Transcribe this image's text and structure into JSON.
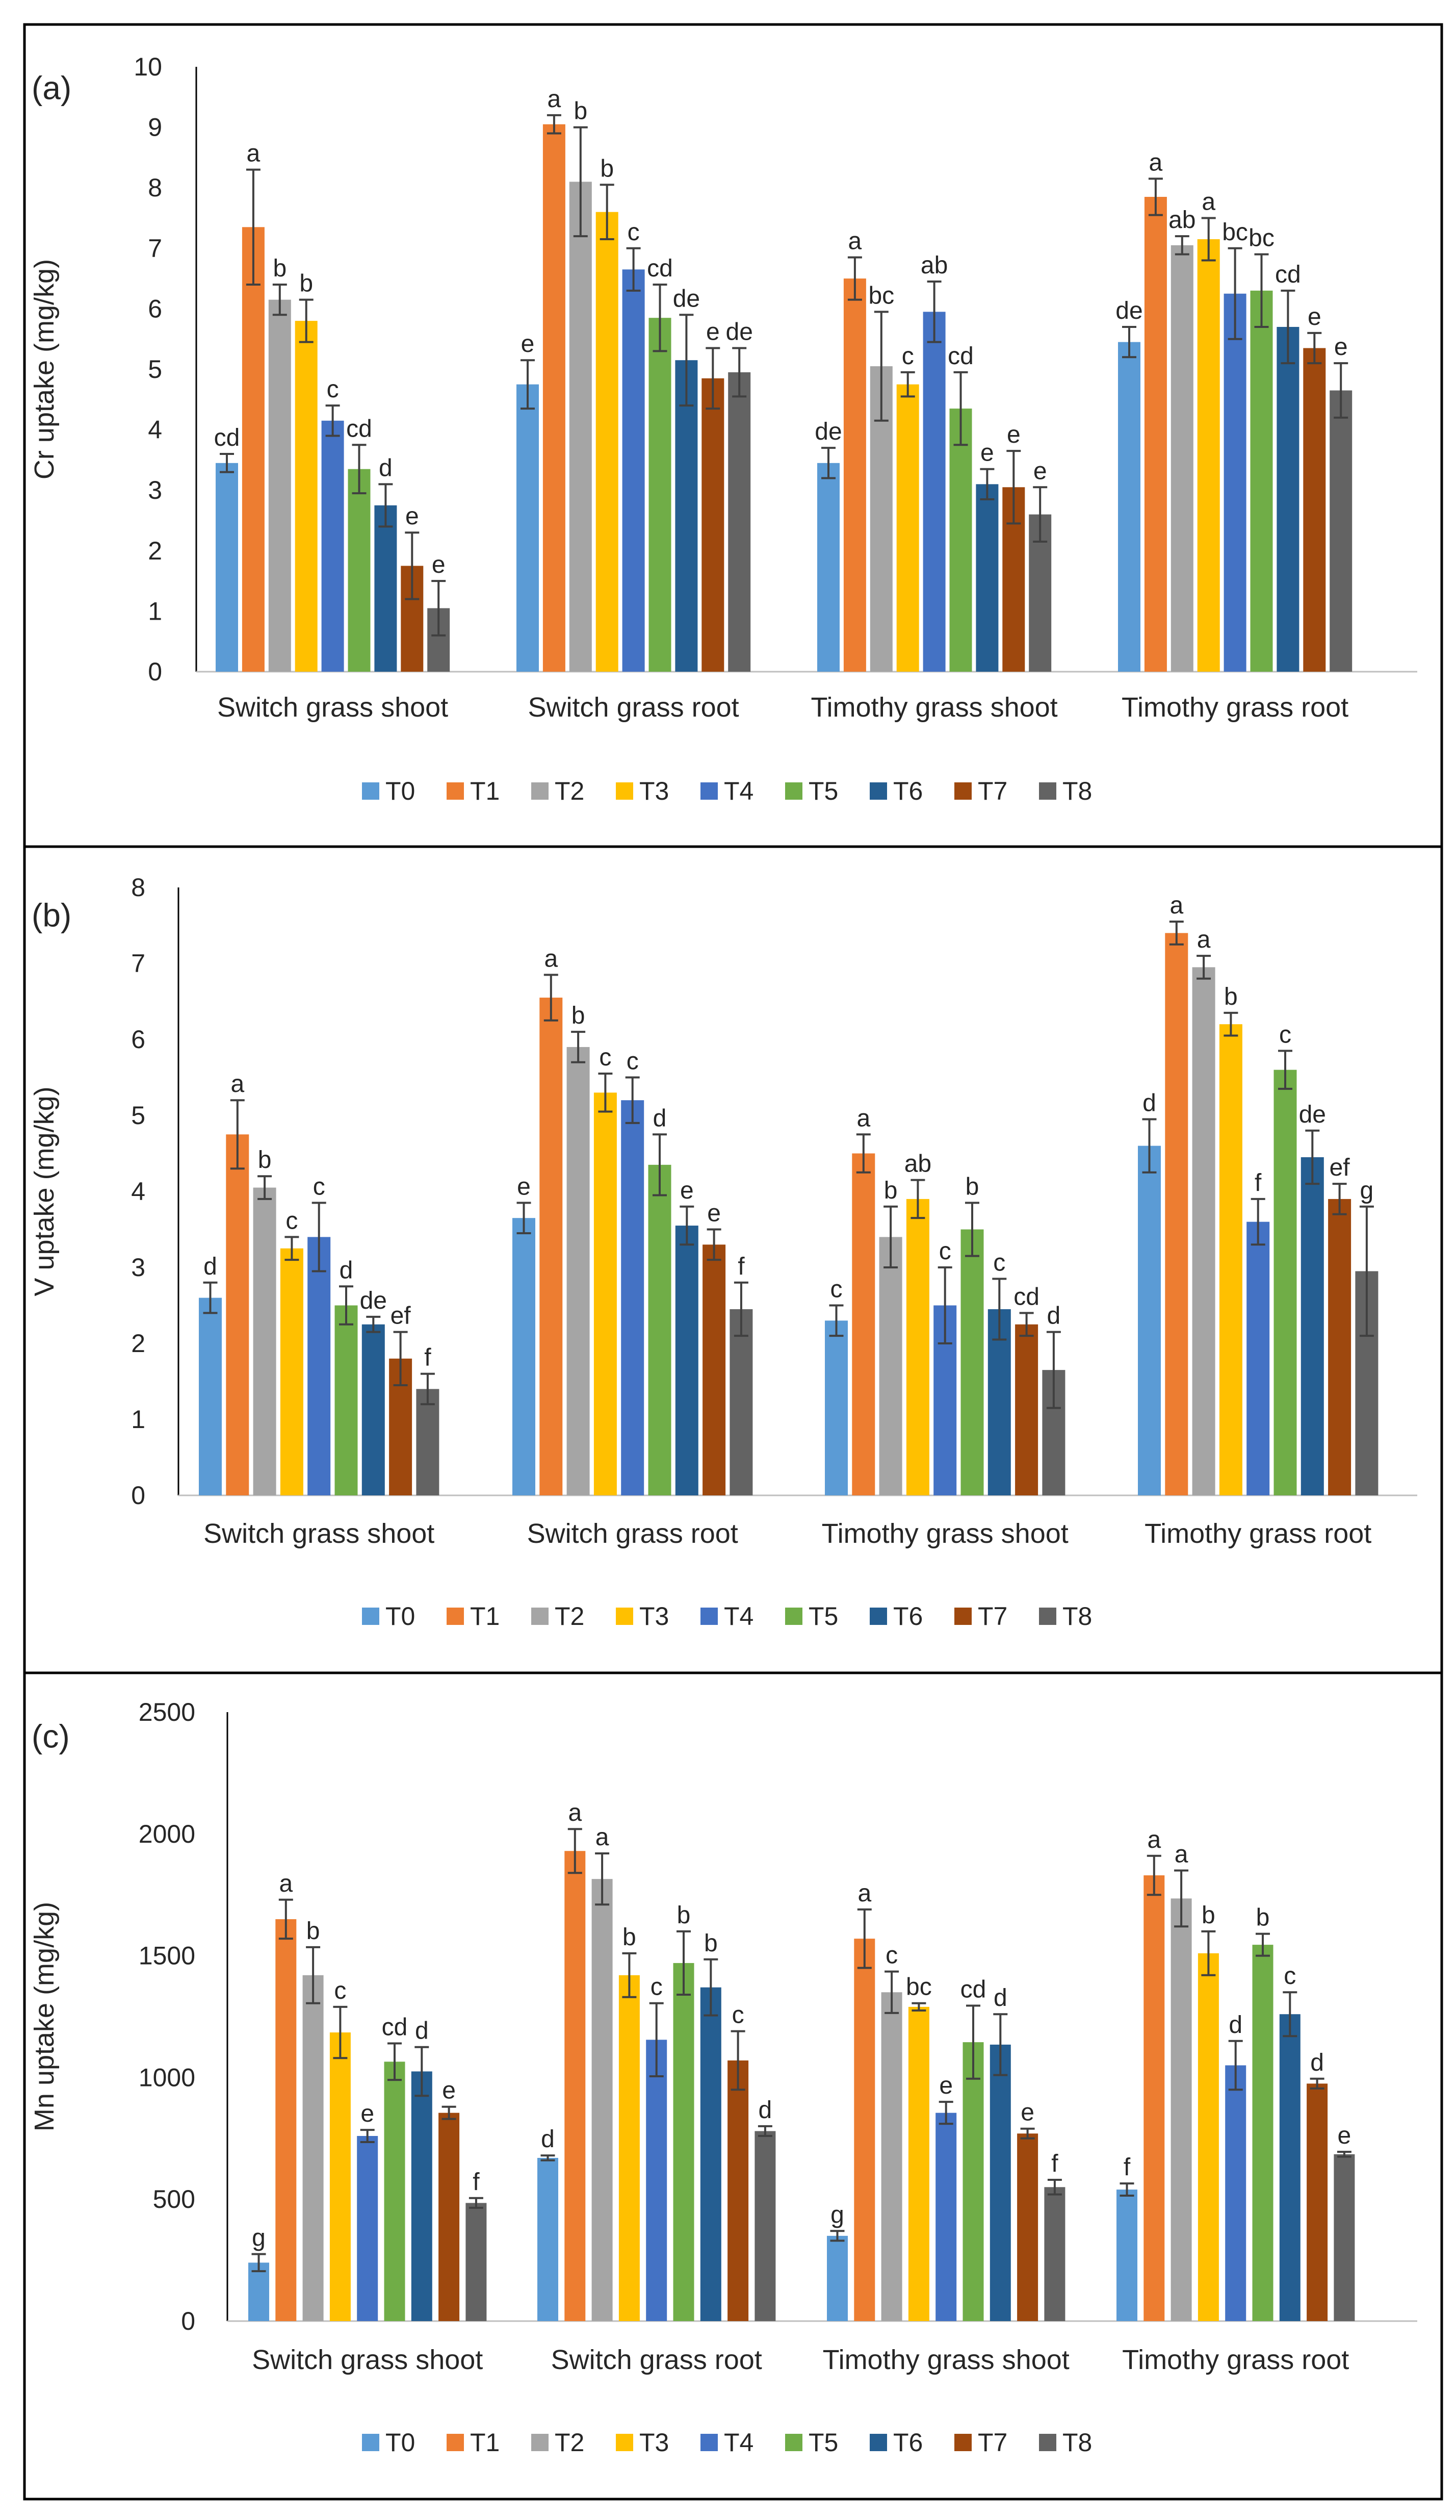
{
  "legend_labels": [
    "T0",
    "T1",
    "T2",
    "T3",
    "T4",
    "T5",
    "T6",
    "T7",
    "T8"
  ],
  "series_colors": [
    "#5B9BD5",
    "#ED7D31",
    "#A5A5A5",
    "#FFC000",
    "#4472C4",
    "#70AD47",
    "#255E91",
    "#9E480E",
    "#636363"
  ],
  "chart_data": [
    {
      "type": "bar",
      "panel_label": "(a)",
      "ylabel": "Cr uptake (mg/kg)",
      "ylim": [
        0,
        10
      ],
      "yticks": [
        0,
        1,
        2,
        3,
        4,
        5,
        6,
        7,
        8,
        9,
        10
      ],
      "categories": [
        "Switch grass shoot",
        "Switch grass root",
        "Timothy grass shoot",
        "Timothy grass root"
      ],
      "series": [
        {
          "name": "T0",
          "values": [
            3.45,
            4.75,
            3.45,
            5.45
          ],
          "errors": [
            0.15,
            0.4,
            0.25,
            0.25
          ],
          "letters": [
            "cd",
            "e",
            "de",
            "de"
          ]
        },
        {
          "name": "T1",
          "values": [
            7.35,
            9.05,
            6.5,
            7.85
          ],
          "errors": [
            0.95,
            0.15,
            0.35,
            0.3
          ],
          "letters": [
            "a",
            "a",
            "a",
            "a"
          ]
        },
        {
          "name": "T2",
          "values": [
            6.15,
            8.1,
            5.05,
            7.05
          ],
          "errors": [
            0.25,
            0.9,
            0.9,
            0.15
          ],
          "letters": [
            "b",
            "b",
            "bc",
            "ab"
          ]
        },
        {
          "name": "T3",
          "values": [
            5.8,
            7.6,
            4.75,
            7.15
          ],
          "errors": [
            0.35,
            0.45,
            0.2,
            0.35
          ],
          "letters": [
            "b",
            "b",
            "c",
            "a"
          ]
        },
        {
          "name": "T4",
          "values": [
            4.15,
            6.65,
            5.95,
            6.25
          ],
          "errors": [
            0.25,
            0.35,
            0.5,
            0.75
          ],
          "letters": [
            "c",
            "c",
            "ab",
            "bc"
          ]
        },
        {
          "name": "T5",
          "values": [
            3.35,
            5.85,
            4.35,
            6.3
          ],
          "errors": [
            0.4,
            0.55,
            0.6,
            0.6
          ],
          "letters": [
            "cd",
            "cd",
            "cd",
            "bc"
          ]
        },
        {
          "name": "T6",
          "values": [
            2.75,
            5.15,
            3.1,
            5.7
          ],
          "errors": [
            0.35,
            0.75,
            0.25,
            0.6
          ],
          "letters": [
            "d",
            "de",
            "e",
            "cd"
          ]
        },
        {
          "name": "T7",
          "values": [
            1.75,
            4.85,
            3.05,
            5.35
          ],
          "errors": [
            0.55,
            0.5,
            0.6,
            0.25
          ],
          "letters": [
            "e",
            "e",
            "e",
            "e"
          ]
        },
        {
          "name": "T8",
          "values": [
            1.05,
            4.95,
            2.6,
            4.65
          ],
          "errors": [
            0.45,
            0.4,
            0.45,
            0.45
          ],
          "letters": [
            "e",
            "de",
            "e",
            "e"
          ]
        }
      ]
    },
    {
      "type": "bar",
      "panel_label": "(b)",
      "ylabel": "V uptake (mg/kg)",
      "ylim": [
        0,
        8
      ],
      "yticks": [
        0,
        1,
        2,
        3,
        4,
        5,
        6,
        7,
        8
      ],
      "categories": [
        "Switch grass shoot",
        "Switch grass root",
        "Timothy grass shoot",
        "Timothy grass root"
      ],
      "series": [
        {
          "name": "T0",
          "values": [
            2.6,
            3.65,
            2.3,
            4.6
          ],
          "errors": [
            0.2,
            0.2,
            0.2,
            0.35
          ],
          "letters": [
            "d",
            "e",
            "c",
            "d"
          ]
        },
        {
          "name": "T1",
          "values": [
            4.75,
            6.55,
            4.5,
            7.4
          ],
          "errors": [
            0.45,
            0.3,
            0.25,
            0.15
          ],
          "letters": [
            "a",
            "a",
            "a",
            "a"
          ]
        },
        {
          "name": "T2",
          "values": [
            4.05,
            5.9,
            3.4,
            6.95
          ],
          "errors": [
            0.15,
            0.2,
            0.4,
            0.15
          ],
          "letters": [
            "b",
            "b",
            "b",
            "a"
          ]
        },
        {
          "name": "T3",
          "values": [
            3.25,
            5.3,
            3.9,
            6.2
          ],
          "errors": [
            0.15,
            0.25,
            0.25,
            0.15
          ],
          "letters": [
            "c",
            "c",
            "ab",
            "b"
          ]
        },
        {
          "name": "T4",
          "values": [
            3.4,
            5.2,
            2.5,
            3.6
          ],
          "errors": [
            0.45,
            0.3,
            0.5,
            0.3
          ],
          "letters": [
            "c",
            "c",
            "c",
            "f"
          ]
        },
        {
          "name": "T5",
          "values": [
            2.5,
            4.35,
            3.5,
            5.6
          ],
          "errors": [
            0.25,
            0.4,
            0.35,
            0.25
          ],
          "letters": [
            "d",
            "d",
            "b",
            "c"
          ]
        },
        {
          "name": "T6",
          "values": [
            2.25,
            3.55,
            2.45,
            4.45
          ],
          "errors": [
            0.1,
            0.25,
            0.4,
            0.35
          ],
          "letters": [
            "de",
            "e",
            "c",
            "de"
          ]
        },
        {
          "name": "T7",
          "values": [
            1.8,
            3.3,
            2.25,
            3.9
          ],
          "errors": [
            0.35,
            0.2,
            0.15,
            0.2
          ],
          "letters": [
            "ef",
            "e",
            "cd",
            "ef"
          ]
        },
        {
          "name": "T8",
          "values": [
            1.4,
            2.45,
            1.65,
            2.95
          ],
          "errors": [
            0.2,
            0.35,
            0.5,
            0.85
          ],
          "letters": [
            "f",
            "f",
            "d",
            "g"
          ]
        }
      ]
    },
    {
      "type": "bar",
      "panel_label": "(c)",
      "ylabel": "Mn uptake (mg/kg)",
      "ylim": [
        0,
        2500
      ],
      "yticks": [
        0,
        500,
        1000,
        1500,
        2000,
        2500
      ],
      "categories": [
        "Switch grass shoot",
        "Switch grass root",
        "Timothy grass shoot",
        "Timothy grass root"
      ],
      "series": [
        {
          "name": "T0",
          "values": [
            240,
            670,
            350,
            540
          ],
          "errors": [
            35,
            10,
            20,
            25
          ],
          "letters": [
            "g",
            "d",
            "g",
            "f"
          ]
        },
        {
          "name": "T1",
          "values": [
            1650,
            1930,
            1570,
            1830
          ],
          "errors": [
            80,
            90,
            120,
            80
          ],
          "letters": [
            "a",
            "a",
            "a",
            "a"
          ]
        },
        {
          "name": "T2",
          "values": [
            1420,
            1815,
            1350,
            1735
          ],
          "errors": [
            115,
            105,
            85,
            115
          ],
          "letters": [
            "b",
            "a",
            "c",
            "a"
          ]
        },
        {
          "name": "T3",
          "values": [
            1185,
            1420,
            1290,
            1510
          ],
          "errors": [
            105,
            90,
            15,
            90
          ],
          "letters": [
            "c",
            "b",
            "bc",
            "b"
          ]
        },
        {
          "name": "T4",
          "values": [
            760,
            1155,
            855,
            1050
          ],
          "errors": [
            25,
            150,
            45,
            100
          ],
          "letters": [
            "e",
            "c",
            "e",
            "d"
          ]
        },
        {
          "name": "T5",
          "values": [
            1065,
            1470,
            1145,
            1545
          ],
          "errors": [
            75,
            130,
            150,
            45
          ],
          "letters": [
            "cd",
            "b",
            "cd",
            "b"
          ]
        },
        {
          "name": "T6",
          "values": [
            1025,
            1370,
            1135,
            1260
          ],
          "errors": [
            100,
            115,
            125,
            90
          ],
          "letters": [
            "d",
            "b",
            "d",
            "c"
          ]
        },
        {
          "name": "T7",
          "values": [
            855,
            1070,
            770,
            975
          ],
          "errors": [
            25,
            120,
            20,
            20
          ],
          "letters": [
            "e",
            "c",
            "e",
            "d"
          ]
        },
        {
          "name": "T8",
          "values": [
            485,
            780,
            550,
            685
          ],
          "errors": [
            20,
            20,
            30,
            10
          ],
          "letters": [
            "f",
            "d",
            "f",
            "e"
          ]
        }
      ]
    }
  ]
}
